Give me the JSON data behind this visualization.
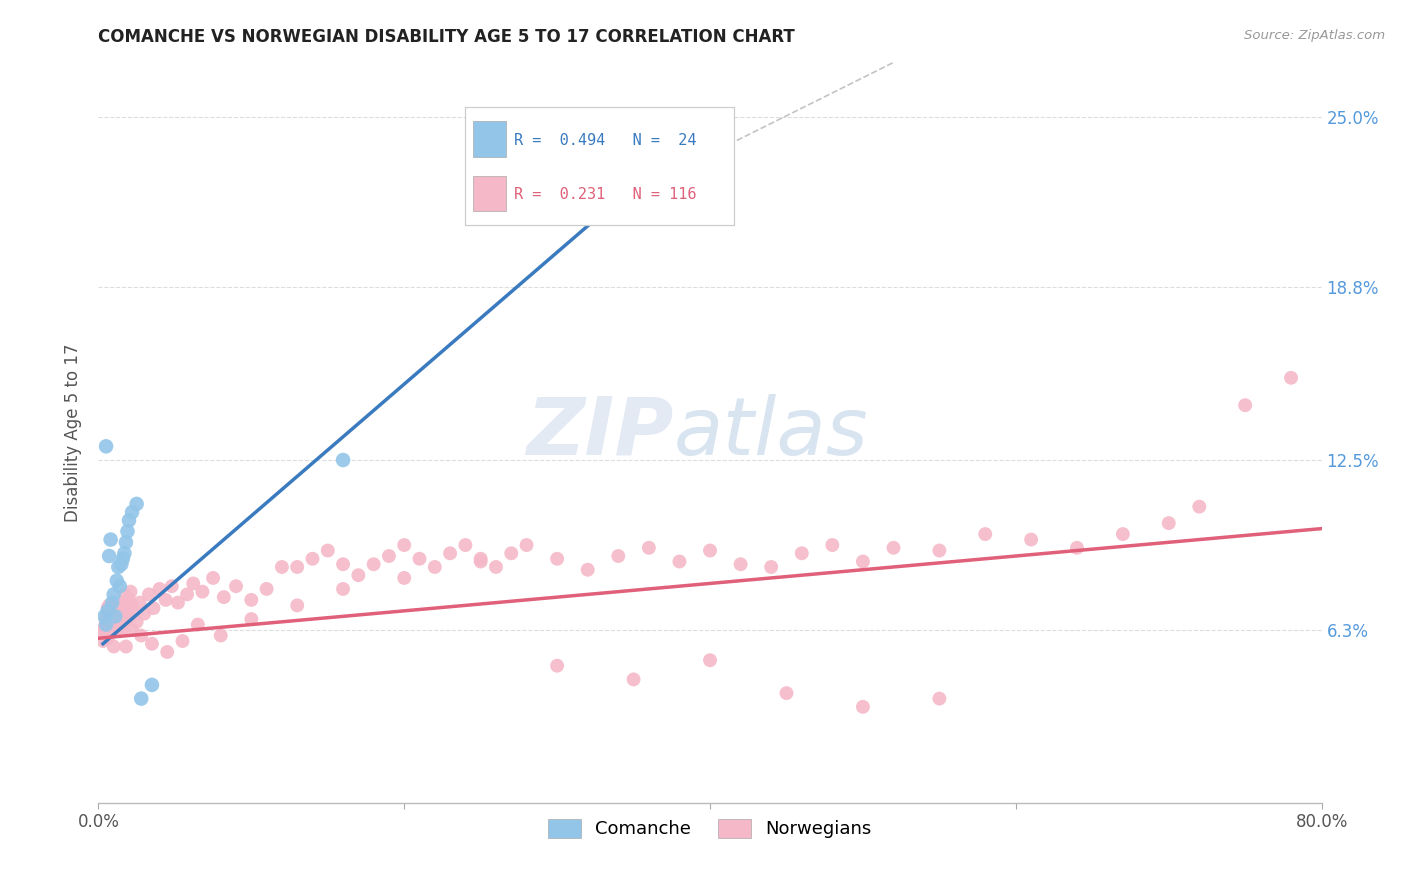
{
  "title": "COMANCHE VS NORWEGIAN DISABILITY AGE 5 TO 17 CORRELATION CHART",
  "source": "Source: ZipAtlas.com",
  "ylabel": "Disability Age 5 to 17",
  "ytick_labels": [
    "6.3%",
    "12.5%",
    "18.8%",
    "25.0%"
  ],
  "ytick_values": [
    0.063,
    0.125,
    0.188,
    0.25
  ],
  "xlim": [
    0.0,
    0.8
  ],
  "ylim": [
    0.0,
    0.27
  ],
  "legend_blue_r": "0.494",
  "legend_blue_n": "24",
  "legend_pink_r": "0.231",
  "legend_pink_n": "116",
  "blue_color": "#92c5e8",
  "pink_color": "#f5b8c8",
  "blue_line_color": "#3a7bbf",
  "pink_line_color": "#e0607a",
  "grid_color": "#dddddd",
  "title_color": "#222222",
  "source_color": "#999999",
  "ytick_color": "#5599dd",
  "comanche_x": [
    0.004,
    0.005,
    0.006,
    0.007,
    0.008,
    0.009,
    0.01,
    0.011,
    0.012,
    0.013,
    0.014,
    0.015,
    0.016,
    0.017,
    0.018,
    0.019,
    0.02,
    0.022,
    0.025,
    0.028,
    0.035,
    0.005,
    0.16,
    0.34
  ],
  "comanche_y": [
    0.068,
    0.13,
    0.07,
    0.09,
    0.096,
    0.073,
    0.076,
    0.068,
    0.081,
    0.086,
    0.079,
    0.087,
    0.089,
    0.091,
    0.095,
    0.099,
    0.103,
    0.106,
    0.109,
    0.038,
    0.043,
    0.065,
    0.125,
    0.22
  ],
  "norwegian_x": [
    0.003,
    0.004,
    0.005,
    0.005,
    0.006,
    0.006,
    0.007,
    0.007,
    0.008,
    0.008,
    0.009,
    0.009,
    0.01,
    0.01,
    0.011,
    0.011,
    0.012,
    0.012,
    0.013,
    0.013,
    0.014,
    0.014,
    0.015,
    0.015,
    0.016,
    0.016,
    0.017,
    0.017,
    0.018,
    0.018,
    0.019,
    0.02,
    0.021,
    0.022,
    0.023,
    0.025,
    0.027,
    0.03,
    0.033,
    0.036,
    0.04,
    0.044,
    0.048,
    0.052,
    0.058,
    0.062,
    0.068,
    0.075,
    0.082,
    0.09,
    0.1,
    0.11,
    0.12,
    0.13,
    0.14,
    0.15,
    0.16,
    0.17,
    0.18,
    0.19,
    0.2,
    0.21,
    0.22,
    0.23,
    0.24,
    0.25,
    0.26,
    0.27,
    0.28,
    0.3,
    0.32,
    0.34,
    0.36,
    0.38,
    0.4,
    0.42,
    0.44,
    0.46,
    0.48,
    0.5,
    0.52,
    0.55,
    0.58,
    0.61,
    0.64,
    0.67,
    0.7,
    0.72,
    0.75,
    0.78,
    0.003,
    0.004,
    0.006,
    0.008,
    0.01,
    0.012,
    0.015,
    0.018,
    0.022,
    0.028,
    0.035,
    0.045,
    0.055,
    0.065,
    0.08,
    0.1,
    0.13,
    0.16,
    0.2,
    0.25,
    0.3,
    0.35,
    0.4,
    0.45,
    0.5,
    0.55
  ],
  "norwegian_y": [
    0.059,
    0.063,
    0.066,
    0.067,
    0.069,
    0.071,
    0.07,
    0.072,
    0.071,
    0.068,
    0.065,
    0.067,
    0.064,
    0.066,
    0.068,
    0.063,
    0.07,
    0.072,
    0.066,
    0.064,
    0.068,
    0.071,
    0.069,
    0.066,
    0.064,
    0.071,
    0.073,
    0.076,
    0.071,
    0.066,
    0.069,
    0.074,
    0.077,
    0.072,
    0.069,
    0.066,
    0.073,
    0.069,
    0.076,
    0.071,
    0.078,
    0.074,
    0.079,
    0.073,
    0.076,
    0.08,
    0.077,
    0.082,
    0.075,
    0.079,
    0.074,
    0.078,
    0.086,
    0.086,
    0.089,
    0.092,
    0.087,
    0.083,
    0.087,
    0.09,
    0.094,
    0.089,
    0.086,
    0.091,
    0.094,
    0.089,
    0.086,
    0.091,
    0.094,
    0.089,
    0.085,
    0.09,
    0.093,
    0.088,
    0.092,
    0.087,
    0.086,
    0.091,
    0.094,
    0.088,
    0.093,
    0.092,
    0.098,
    0.096,
    0.093,
    0.098,
    0.102,
    0.108,
    0.145,
    0.155,
    0.062,
    0.064,
    0.06,
    0.068,
    0.057,
    0.066,
    0.063,
    0.057,
    0.063,
    0.061,
    0.058,
    0.055,
    0.059,
    0.065,
    0.061,
    0.067,
    0.072,
    0.078,
    0.082,
    0.088,
    0.05,
    0.045,
    0.052,
    0.04,
    0.035,
    0.038
  ],
  "blue_trendline_x": [
    0.003,
    0.34
  ],
  "blue_trendline_y": [
    0.058,
    0.22
  ],
  "pink_trendline_x": [
    0.0,
    0.8
  ],
  "pink_trendline_y": [
    0.06,
    0.1
  ],
  "dashed_line_x": [
    0.34,
    0.52
  ],
  "dashed_line_y": [
    0.22,
    0.27
  ]
}
